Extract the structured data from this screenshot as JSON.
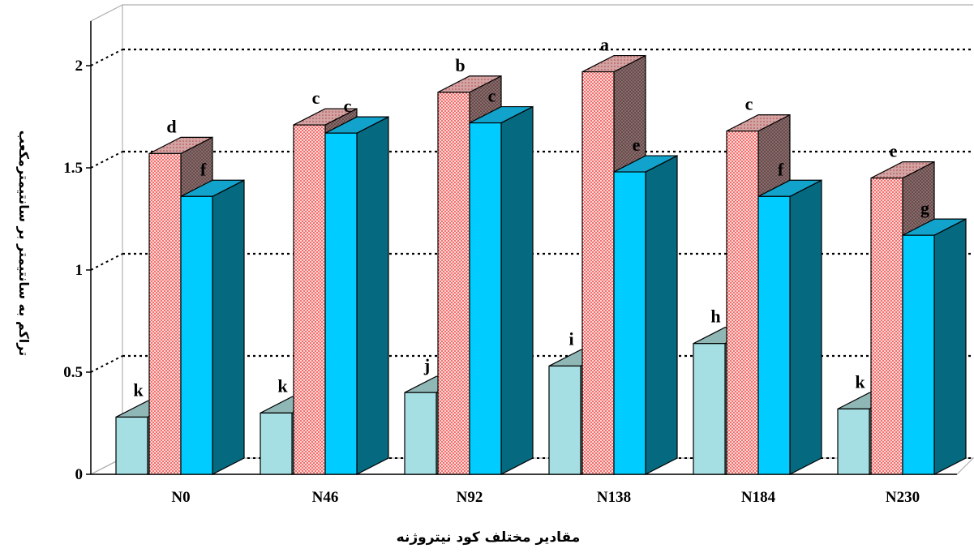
{
  "chart_data": {
    "type": "bar",
    "title": "",
    "xlabel": "مقادیر مختلف کود نیتروژنه",
    "ylabel": "تراکم به سانتیمتر بر سانتیمترمکعب",
    "ylim": [
      0,
      2
    ],
    "yticks": [
      "0",
      "0.5",
      "1",
      "1.5",
      "2"
    ],
    "grid": true,
    "categories": [
      "N0",
      "N46",
      "N92",
      "N138",
      "N184",
      "N230"
    ],
    "series": [
      {
        "values": [
          0.28,
          0.3,
          0.4,
          0.53,
          0.64,
          0.32
        ],
        "letters": [
          "k",
          "k",
          "j",
          "i",
          "h",
          "k"
        ]
      },
      {
        "values": [
          1.57,
          1.71,
          1.87,
          1.97,
          1.68,
          1.45
        ],
        "letters": [
          "d",
          "c",
          "b",
          "a",
          "c",
          "e"
        ]
      },
      {
        "values": [
          1.36,
          1.67,
          1.72,
          1.48,
          1.36,
          1.17
        ],
        "letters": [
          "f",
          "c",
          "c",
          "e",
          "f",
          "g"
        ]
      }
    ]
  },
  "colors": {
    "series": [
      {
        "front": "#a6dfe3",
        "top": "#8fb7b5",
        "side": "#6f9f9d"
      },
      {
        "front": "#ffd9d9",
        "dots": "#e8241f",
        "top": "#cfa0a0",
        "side": "#8a6a6a"
      },
      {
        "front": "#00ccff",
        "top": "#11a3cc",
        "side": "#056a80"
      }
    ],
    "axis": "#000000",
    "wall": "#b0b0b0"
  }
}
